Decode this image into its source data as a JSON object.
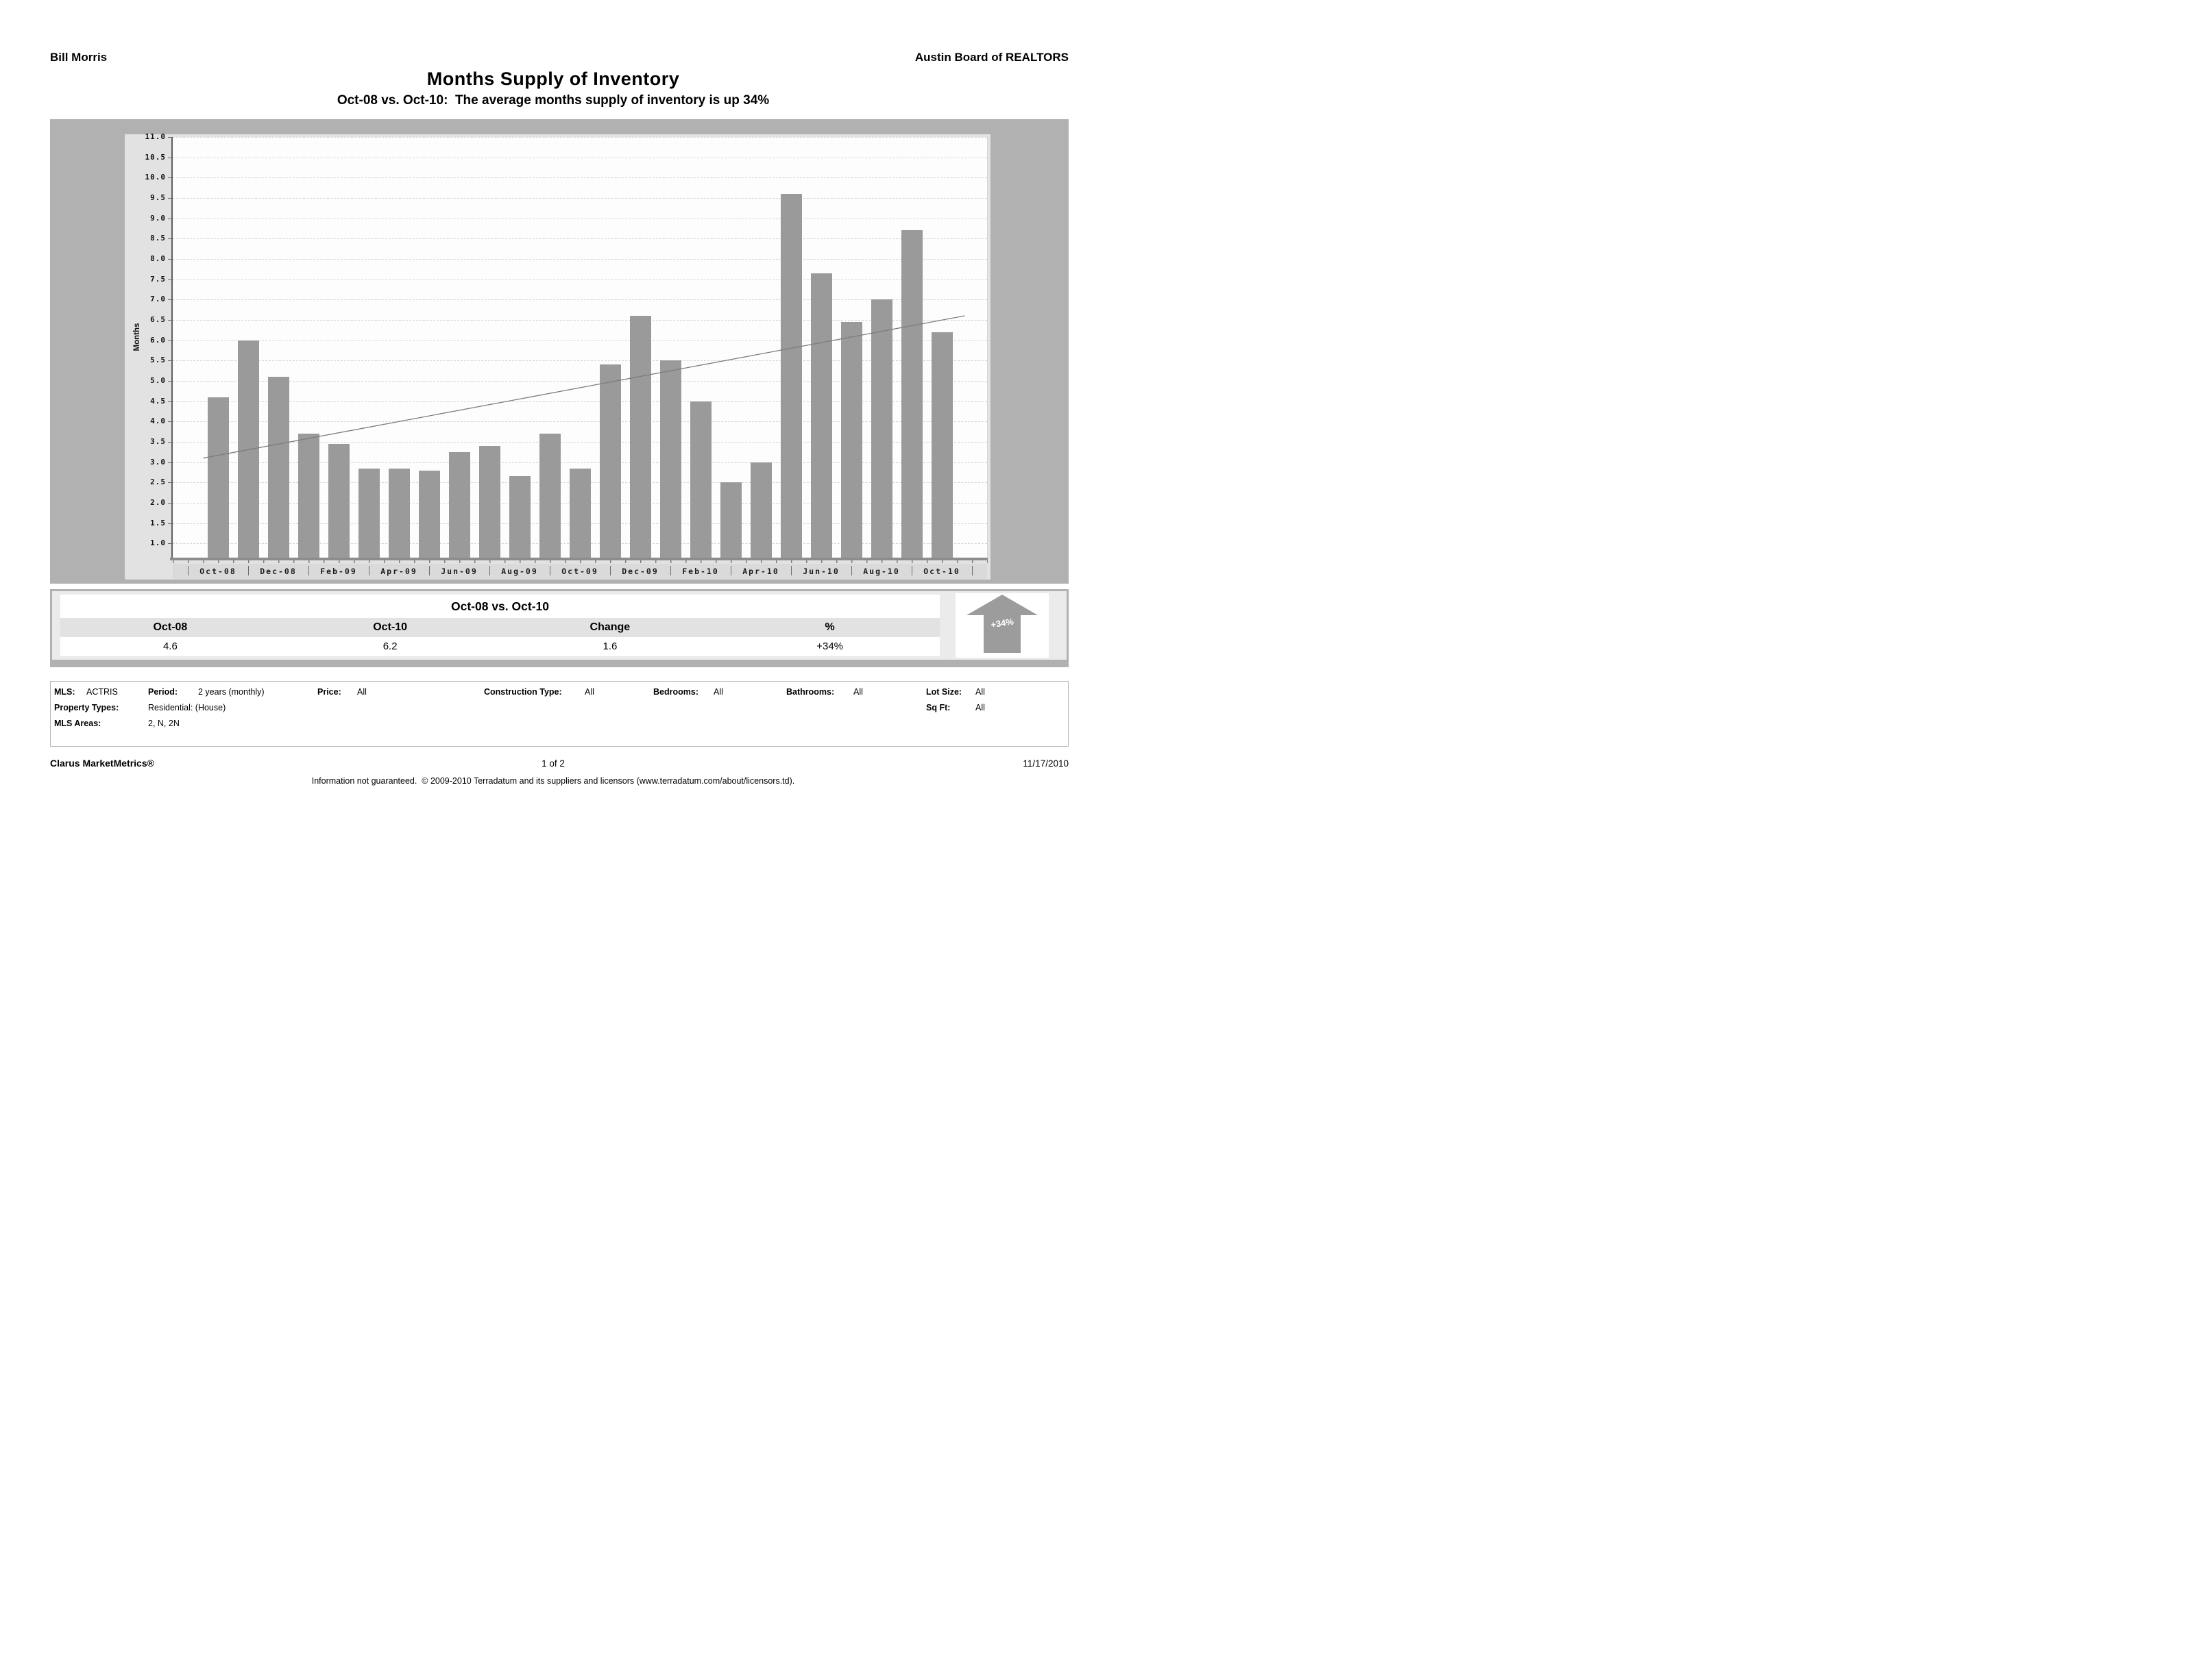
{
  "header": {
    "left": "Bill Morris",
    "right": "Austin Board of REALTORS"
  },
  "title": "Months Supply of Inventory",
  "subtitle": "Oct-08 vs. Oct-10:  The average months supply of inventory is up 34%",
  "chart_data": {
    "type": "bar",
    "title": "Months Supply of Inventory",
    "xlabel": "",
    "ylabel": "Months",
    "ylim": [
      0.65,
      11.0
    ],
    "ytick_start": 1.0,
    "ytick_end": 11.0,
    "ytick_step": 0.5,
    "grid": "horizontal-dashed",
    "legend": "none",
    "bar_color": "#9a9a9a",
    "categories": [
      "Oct-08",
      "Nov-08",
      "Dec-08",
      "Jan-09",
      "Feb-09",
      "Mar-09",
      "Apr-09",
      "May-09",
      "Jun-09",
      "Jul-09",
      "Aug-09",
      "Sep-09",
      "Oct-09",
      "Nov-09",
      "Dec-09",
      "Jan-10",
      "Feb-10",
      "Mar-10",
      "Apr-10",
      "May-10",
      "Jun-10",
      "Jul-10",
      "Aug-10",
      "Sep-10",
      "Oct-10"
    ],
    "values": [
      4.6,
      6.0,
      5.1,
      3.7,
      3.45,
      2.85,
      2.85,
      2.8,
      3.25,
      3.4,
      2.65,
      3.7,
      2.85,
      5.4,
      6.6,
      5.5,
      4.5,
      2.5,
      3.0,
      9.6,
      7.65,
      6.45,
      7.0,
      8.7,
      6.2
    ],
    "x_axis_labels": [
      "Oct-08",
      "Dec-08",
      "Feb-09",
      "Apr-09",
      "Jun-09",
      "Aug-09",
      "Oct-09",
      "Dec-09",
      "Feb-10",
      "Apr-10",
      "Jun-10",
      "Aug-10",
      "Oct-10"
    ],
    "trend_line": {
      "type": "linear",
      "start_value": 3.1,
      "end_value": 6.6
    }
  },
  "summary_table": {
    "title": "Oct-08 vs. Oct-10",
    "columns": [
      "Oct-08",
      "Oct-10",
      "Change",
      "%"
    ],
    "values": [
      "4.6",
      "6.2",
      "1.6",
      "+34%"
    ],
    "arrow_label": "+34%"
  },
  "filters": {
    "row1": [
      {
        "label": "MLS:",
        "value": "ACTRIS"
      },
      {
        "label": "Period:",
        "value": "2 years (monthly)"
      },
      {
        "label": "Price:",
        "value": "All"
      },
      {
        "label": "Construction Type:",
        "value": "All"
      },
      {
        "label": "Bedrooms:",
        "value": "All"
      },
      {
        "label": "Bathrooms:",
        "value": "All"
      },
      {
        "label": "Lot Size:",
        "value": "All"
      }
    ],
    "row2": [
      {
        "label": "Property Types:",
        "value": "Residential: (House)"
      },
      {
        "label": "Sq Ft:",
        "value": "All"
      }
    ],
    "row3": [
      {
        "label": "MLS Areas:",
        "value": "2, N, 2N"
      }
    ]
  },
  "footer": {
    "left": "Clarus MarketMetrics®",
    "center": "1 of 2",
    "right": "11/17/2010",
    "disclaimer": "Information not guaranteed.  © 2009-2010 Terradatum and its suppliers and licensors (www.terradatum.com/about/licensors.td)."
  }
}
